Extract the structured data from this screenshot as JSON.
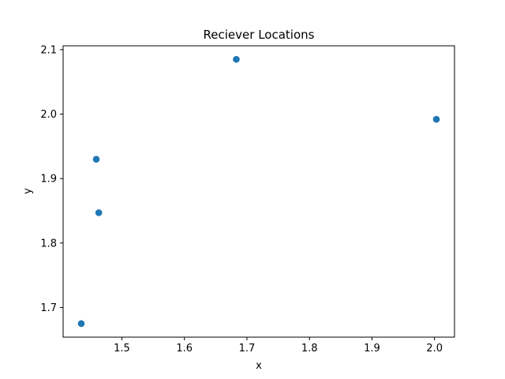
{
  "chart_data": {
    "type": "scatter",
    "title": "Reciever Locations",
    "xlabel": "x",
    "ylabel": "y",
    "xlim": [
      1.406,
      2.032
    ],
    "ylim": [
      1.654,
      2.106
    ],
    "xticks": [
      1.5,
      1.6,
      1.7,
      1.8,
      1.9,
      2.0
    ],
    "yticks": [
      1.7,
      1.8,
      1.9,
      2.0,
      2.1
    ],
    "xtick_labels": [
      "1.5",
      "1.6",
      "1.7",
      "1.8",
      "1.9",
      "2.0"
    ],
    "ytick_labels": [
      "1.7",
      "1.8",
      "1.9",
      "2.0",
      "2.1"
    ],
    "grid": false,
    "marker_color": "#1f77b4",
    "points": [
      {
        "x": 1.683,
        "y": 2.085
      },
      {
        "x": 2.003,
        "y": 1.992
      },
      {
        "x": 1.459,
        "y": 1.93
      },
      {
        "x": 1.463,
        "y": 1.847
      },
      {
        "x": 1.435,
        "y": 1.675
      }
    ]
  }
}
